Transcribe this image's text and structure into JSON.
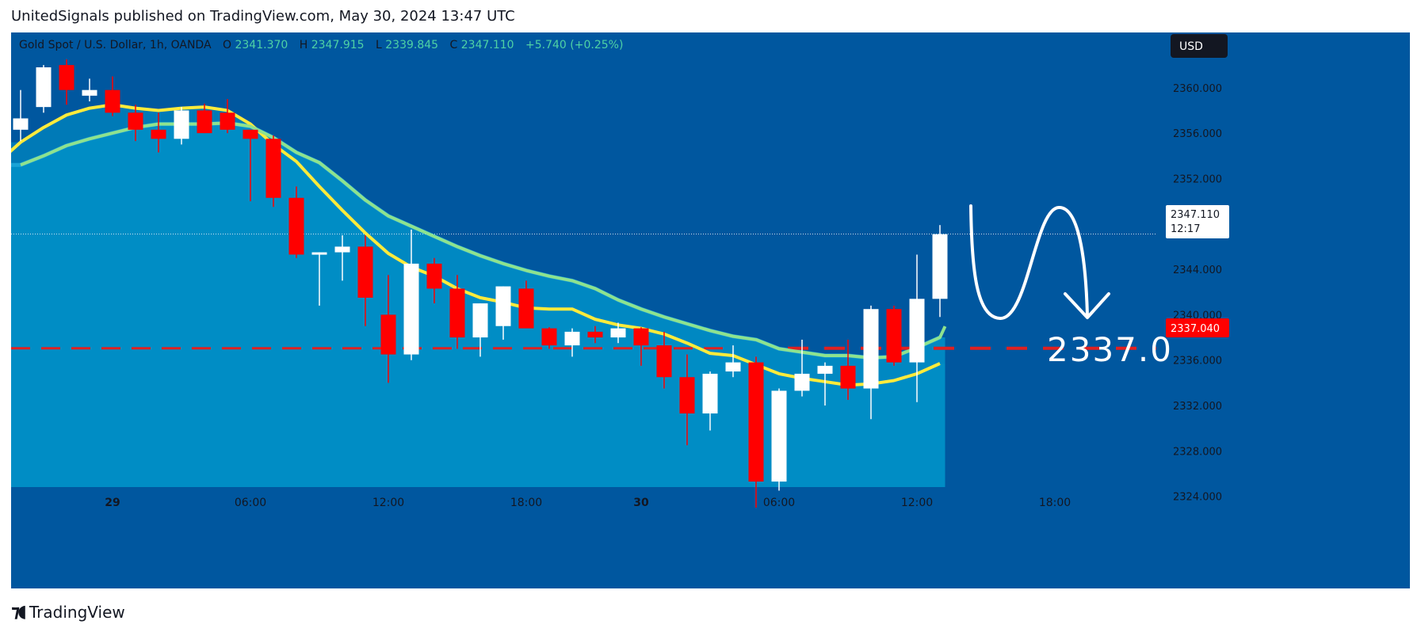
{
  "publisher_line": "UnitedSignals published on TradingView.com, May 30, 2024 13:47 UTC",
  "legend": {
    "symbol": "Gold Spot / U.S. Dollar, 1h, OANDA",
    "open_label": "O",
    "open": "2341.370",
    "high_label": "H",
    "high": "2347.915",
    "low_label": "L",
    "low": "2339.845",
    "close_label": "C",
    "close": "2347.110",
    "change": "+5.740 (+0.25%)"
  },
  "currency_button": "USD",
  "price_tag": {
    "price": "2347.110",
    "countdown": "12:17"
  },
  "level_tag": "2337.040",
  "projection_label": "2337.0",
  "brand": "TradingView",
  "colors": {
    "background": "#00579f",
    "cloud": "#0085bf",
    "up_candle": "#ffffff",
    "down_candle": "#ff0000",
    "fast_ma": "#ffeb3b",
    "slow_ma": "#8ee28e",
    "level": "#e02020"
  },
  "chart_data": {
    "type": "candlestick",
    "symbol": "Gold Spot / U.S. Dollar",
    "interval": "1h",
    "x_tick_labels": [
      "29",
      "06:00",
      "12:00",
      "18:00",
      "30",
      "06:00",
      "12:00",
      "18:00"
    ],
    "x_tick_index": [
      4,
      10,
      16,
      22,
      27,
      33,
      39,
      45
    ],
    "y_tick_labels": [
      "2360.000",
      "2356.000",
      "2352.000",
      "2348.000",
      "2344.000",
      "2340.000",
      "2336.000",
      "2332.000",
      "2328.000",
      "2324.000"
    ],
    "ylim": [
      2322.9,
      2361.8
    ],
    "candles": [
      [
        2356.3,
        2359.8,
        2355.3,
        2357.3
      ],
      [
        2358.3,
        2362.0,
        2357.8,
        2361.8
      ],
      [
        2362.0,
        2362.5,
        2358.5,
        2359.8
      ],
      [
        2359.3,
        2360.8,
        2358.8,
        2359.8
      ],
      [
        2359.8,
        2361.0,
        2357.5,
        2357.8
      ],
      [
        2357.8,
        2358.5,
        2355.3,
        2356.3
      ],
      [
        2356.3,
        2357.8,
        2354.3,
        2355.5
      ],
      [
        2355.5,
        2358.3,
        2355.0,
        2358.0
      ],
      [
        2358.0,
        2358.6,
        2356.0,
        2356.0
      ],
      [
        2357.8,
        2359.0,
        2356.0,
        2356.3
      ],
      [
        2356.3,
        2356.3,
        2350.0,
        2355.5
      ],
      [
        2355.5,
        2355.8,
        2349.5,
        2350.3
      ],
      [
        2350.3,
        2351.3,
        2345.0,
        2345.3
      ],
      [
        2345.3,
        2345.5,
        2340.8,
        2345.5
      ],
      [
        2345.5,
        2347.0,
        2343.0,
        2346.0
      ],
      [
        2346.0,
        2347.0,
        2339.0,
        2341.5
      ],
      [
        2340.0,
        2343.5,
        2334.0,
        2336.5
      ],
      [
        2336.5,
        2347.5,
        2336.0,
        2344.5
      ],
      [
        2344.5,
        2345.0,
        2341.0,
        2342.3
      ],
      [
        2342.3,
        2343.5,
        2337.0,
        2338.0
      ],
      [
        2338.0,
        2341.0,
        2336.3,
        2341.0
      ],
      [
        2339.0,
        2342.5,
        2337.8,
        2342.5
      ],
      [
        2342.3,
        2343.0,
        2339.0,
        2338.8
      ],
      [
        2338.8,
        2338.9,
        2337.0,
        2337.3
      ],
      [
        2337.3,
        2338.8,
        2336.3,
        2338.5
      ],
      [
        2338.5,
        2339.0,
        2337.5,
        2338.0
      ],
      [
        2338.0,
        2339.3,
        2337.5,
        2338.8
      ],
      [
        2338.8,
        2338.9,
        2335.5,
        2337.3
      ],
      [
        2337.3,
        2338.5,
        2333.5,
        2334.5
      ],
      [
        2334.5,
        2336.5,
        2328.5,
        2331.3
      ],
      [
        2331.3,
        2335.0,
        2329.8,
        2334.8
      ],
      [
        2335.0,
        2337.3,
        2334.5,
        2335.8
      ],
      [
        2335.8,
        2336.3,
        2323.0,
        2325.3
      ],
      [
        2325.3,
        2333.5,
        2324.5,
        2333.3
      ],
      [
        2333.3,
        2337.8,
        2332.8,
        2334.8
      ],
      [
        2334.8,
        2335.8,
        2332.0,
        2335.5
      ],
      [
        2335.5,
        2337.8,
        2332.5,
        2333.5
      ],
      [
        2333.5,
        2340.8,
        2330.8,
        2340.5
      ],
      [
        2340.5,
        2340.8,
        2335.5,
        2335.8
      ],
      [
        2335.8,
        2345.3,
        2332.3,
        2341.4
      ],
      [
        2341.4,
        2347.9,
        2339.8,
        2347.1
      ]
    ],
    "fast_ma": [
      2355.2,
      2356.5,
      2357.6,
      2358.2,
      2358.5,
      2358.2,
      2358.0,
      2358.2,
      2358.3,
      2358.0,
      2356.8,
      2355.0,
      2353.5,
      2351.3,
      2349.2,
      2347.2,
      2345.4,
      2344.2,
      2343.4,
      2342.3,
      2341.5,
      2341.1,
      2340.6,
      2340.5,
      2340.5,
      2339.6,
      2339.1,
      2338.8,
      2338.3,
      2337.5,
      2336.6,
      2336.4,
      2335.6,
      2334.8,
      2334.4,
      2334.1,
      2333.8,
      2333.9,
      2334.2,
      2334.8,
      2335.7
    ],
    "slow_ma": [
      2353.2,
      2354.0,
      2354.9,
      2355.5,
      2356.0,
      2356.5,
      2356.8,
      2356.8,
      2356.8,
      2356.9,
      2356.6,
      2355.6,
      2354.3,
      2353.4,
      2351.8,
      2350.1,
      2348.7,
      2347.8,
      2346.9,
      2346.0,
      2345.2,
      2344.5,
      2343.9,
      2343.4,
      2343.0,
      2342.3,
      2341.3,
      2340.5,
      2339.8,
      2339.2,
      2338.6,
      2338.1,
      2337.8,
      2337.0,
      2336.7,
      2336.4,
      2336.4,
      2336.2,
      2336.3,
      2337.1,
      2338.0
    ],
    "last_price": 2347.11,
    "horizontal_level": 2337.04,
    "projection_target": 2337.0
  }
}
